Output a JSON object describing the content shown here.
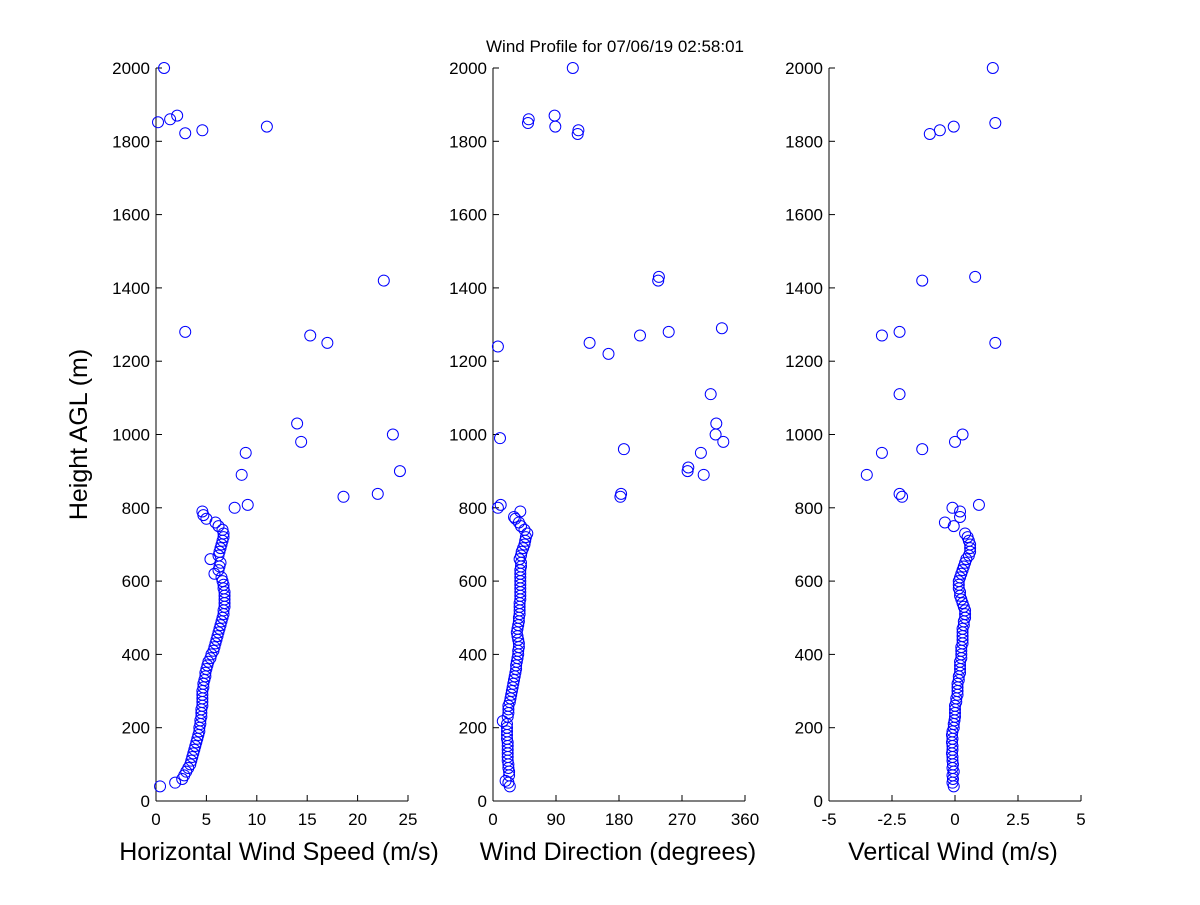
{
  "title": "Wind Profile for  07/06/19 02:58:01",
  "colors": {
    "marker": "#0000ff",
    "axis": "#000000",
    "background": "#ffffff"
  },
  "chart_data": [
    {
      "type": "scatter",
      "xlabel": "Horizontal Wind Speed (m/s)",
      "ylabel": "Height AGL (m)",
      "xlim": [
        0,
        25
      ],
      "ylim": [
        0,
        2000
      ],
      "xticks": [
        0,
        5,
        10,
        15,
        20,
        25
      ],
      "xtick_labels": [
        "0",
        "5",
        "10",
        "15",
        "20",
        "25"
      ],
      "yticks": [
        0,
        200,
        400,
        600,
        800,
        1000,
        1200,
        1400,
        1600,
        1800,
        2000
      ],
      "ytick_labels": [
        "0",
        "200",
        "400",
        "600",
        "800",
        "1000",
        "1200",
        "1400",
        "1600",
        "1800",
        "2000"
      ],
      "grid": false,
      "marker": "open-circle",
      "points": [
        [
          0.4,
          40
        ],
        [
          1.9,
          50
        ],
        [
          2.6,
          60
        ],
        [
          2.8,
          70
        ],
        [
          3.0,
          80
        ],
        [
          3.2,
          90
        ],
        [
          3.4,
          100
        ],
        [
          3.5,
          110
        ],
        [
          3.6,
          120
        ],
        [
          3.7,
          130
        ],
        [
          3.8,
          140
        ],
        [
          3.9,
          150
        ],
        [
          4.0,
          160
        ],
        [
          4.1,
          170
        ],
        [
          4.2,
          180
        ],
        [
          4.3,
          190
        ],
        [
          4.3,
          200
        ],
        [
          4.4,
          210
        ],
        [
          4.4,
          220
        ],
        [
          4.5,
          230
        ],
        [
          4.5,
          240
        ],
        [
          4.5,
          250
        ],
        [
          4.6,
          260
        ],
        [
          4.6,
          270
        ],
        [
          4.6,
          280
        ],
        [
          4.6,
          290
        ],
        [
          4.6,
          300
        ],
        [
          4.7,
          310
        ],
        [
          4.7,
          320
        ],
        [
          4.8,
          330
        ],
        [
          4.9,
          340
        ],
        [
          4.9,
          350
        ],
        [
          5.0,
          360
        ],
        [
          5.1,
          370
        ],
        [
          5.2,
          380
        ],
        [
          5.4,
          390
        ],
        [
          5.5,
          400
        ],
        [
          5.7,
          410
        ],
        [
          5.8,
          420
        ],
        [
          5.9,
          430
        ],
        [
          6.0,
          440
        ],
        [
          6.1,
          450
        ],
        [
          6.2,
          460
        ],
        [
          6.3,
          470
        ],
        [
          6.4,
          480
        ],
        [
          6.5,
          490
        ],
        [
          6.6,
          500
        ],
        [
          6.7,
          510
        ],
        [
          6.7,
          520
        ],
        [
          6.8,
          530
        ],
        [
          6.8,
          540
        ],
        [
          6.8,
          550
        ],
        [
          6.8,
          560
        ],
        [
          6.8,
          570
        ],
        [
          6.7,
          580
        ],
        [
          6.7,
          590
        ],
        [
          6.6,
          600
        ],
        [
          6.5,
          610
        ],
        [
          5.8,
          620
        ],
        [
          6.2,
          630
        ],
        [
          6.3,
          640
        ],
        [
          6.4,
          650
        ],
        [
          5.4,
          660
        ],
        [
          6.2,
          670
        ],
        [
          6.3,
          680
        ],
        [
          6.4,
          690
        ],
        [
          6.5,
          700
        ],
        [
          6.6,
          710
        ],
        [
          6.7,
          720
        ],
        [
          6.7,
          730
        ],
        [
          6.6,
          740
        ],
        [
          6.2,
          750
        ],
        [
          5.9,
          760
        ],
        [
          5.0,
          770
        ],
        [
          4.7,
          780
        ],
        [
          4.6,
          790
        ],
        [
          9.1,
          808
        ],
        [
          7.8,
          800
        ],
        [
          18.6,
          830
        ],
        [
          22.0,
          838
        ],
        [
          8.5,
          890
        ],
        [
          24.2,
          900
        ],
        [
          8.9,
          950
        ],
        [
          14.4,
          980
        ],
        [
          23.5,
          1000
        ],
        [
          14.0,
          1030
        ],
        [
          17.0,
          1250
        ],
        [
          15.3,
          1270
        ],
        [
          2.9,
          1280
        ],
        [
          22.6,
          1420
        ],
        [
          0.2,
          1852
        ],
        [
          2.9,
          1822
        ],
        [
          4.6,
          1830
        ],
        [
          1.4,
          1860
        ],
        [
          2.1,
          1870
        ],
        [
          11.0,
          1840
        ],
        [
          0.8,
          2000
        ]
      ]
    },
    {
      "type": "scatter",
      "xlabel": "Wind Direction (degrees)",
      "ylabel": "",
      "xlim": [
        0,
        360
      ],
      "ylim": [
        0,
        2000
      ],
      "xticks": [
        0,
        90,
        180,
        270,
        360
      ],
      "xtick_labels": [
        "0",
        "90",
        "180",
        "270",
        "360"
      ],
      "yticks": [
        0,
        200,
        400,
        600,
        800,
        1000,
        1200,
        1400,
        1600,
        1800,
        2000
      ],
      "ytick_labels": [
        "0",
        "200",
        "400",
        "600",
        "800",
        "1000",
        "1200",
        "1400",
        "1600",
        "1800",
        "2000"
      ],
      "grid": false,
      "marker": "open-circle",
      "points": [
        [
          24,
          40
        ],
        [
          22,
          50
        ],
        [
          18,
          55
        ],
        [
          23,
          70
        ],
        [
          23,
          80
        ],
        [
          22,
          90
        ],
        [
          22,
          100
        ],
        [
          21,
          110
        ],
        [
          21,
          120
        ],
        [
          21,
          130
        ],
        [
          21,
          140
        ],
        [
          21,
          150
        ],
        [
          21,
          160
        ],
        [
          20,
          170
        ],
        [
          20,
          180
        ],
        [
          20,
          190
        ],
        [
          20,
          200
        ],
        [
          20,
          210
        ],
        [
          14,
          218
        ],
        [
          21,
          230
        ],
        [
          22,
          240
        ],
        [
          22,
          250
        ],
        [
          22,
          260
        ],
        [
          24,
          270
        ],
        [
          25,
          280
        ],
        [
          26,
          290
        ],
        [
          27,
          300
        ],
        [
          28,
          310
        ],
        [
          29,
          320
        ],
        [
          30,
          330
        ],
        [
          31,
          340
        ],
        [
          32,
          350
        ],
        [
          33,
          360
        ],
        [
          33,
          370
        ],
        [
          34,
          380
        ],
        [
          35,
          390
        ],
        [
          36,
          400
        ],
        [
          36,
          410
        ],
        [
          37,
          420
        ],
        [
          37,
          430
        ],
        [
          36,
          440
        ],
        [
          35,
          450
        ],
        [
          34,
          460
        ],
        [
          35,
          470
        ],
        [
          36,
          480
        ],
        [
          37,
          490
        ],
        [
          37,
          500
        ],
        [
          38,
          510
        ],
        [
          38,
          520
        ],
        [
          38,
          530
        ],
        [
          38,
          540
        ],
        [
          39,
          550
        ],
        [
          39,
          560
        ],
        [
          39,
          570
        ],
        [
          39,
          580
        ],
        [
          39,
          590
        ],
        [
          39,
          600
        ],
        [
          39,
          610
        ],
        [
          39,
          620
        ],
        [
          39,
          630
        ],
        [
          40,
          640
        ],
        [
          40,
          650
        ],
        [
          38,
          660
        ],
        [
          40,
          670
        ],
        [
          41,
          680
        ],
        [
          43,
          690
        ],
        [
          45,
          700
        ],
        [
          46,
          710
        ],
        [
          47,
          720
        ],
        [
          49,
          730
        ],
        [
          45,
          740
        ],
        [
          40,
          750
        ],
        [
          37,
          760
        ],
        [
          32,
          770
        ],
        [
          30,
          775
        ],
        [
          39,
          790
        ],
        [
          11,
          808
        ],
        [
          7,
          800
        ],
        [
          182,
          830
        ],
        [
          183,
          838
        ],
        [
          278,
          900
        ],
        [
          279,
          910
        ],
        [
          301,
          890
        ],
        [
          297,
          950
        ],
        [
          187,
          960
        ],
        [
          10,
          990
        ],
        [
          329,
          980
        ],
        [
          318,
          1000
        ],
        [
          319,
          1030
        ],
        [
          311,
          1110
        ],
        [
          138,
          1250
        ],
        [
          165,
          1220
        ],
        [
          210,
          1270
        ],
        [
          7,
          1240
        ],
        [
          251,
          1280
        ],
        [
          327,
          1290
        ],
        [
          236,
          1420
        ],
        [
          237,
          1430
        ],
        [
          50,
          1850
        ],
        [
          51,
          1860
        ],
        [
          88,
          1870
        ],
        [
          89,
          1840
        ],
        [
          121,
          1820
        ],
        [
          122,
          1830
        ],
        [
          114,
          2000
        ]
      ]
    },
    {
      "type": "scatter",
      "xlabel": "Vertical Wind (m/s)",
      "ylabel": "",
      "xlim": [
        -5,
        5
      ],
      "ylim": [
        0,
        2000
      ],
      "xticks": [
        -5,
        -2.5,
        0,
        2.5,
        5
      ],
      "xtick_labels": [
        "-5",
        "-2.5",
        "0",
        "2.5",
        "5"
      ],
      "yticks": [
        0,
        200,
        400,
        600,
        800,
        1000,
        1200,
        1400,
        1600,
        1800,
        2000
      ],
      "ytick_labels": [
        "0",
        "200",
        "400",
        "600",
        "800",
        "1000",
        "1200",
        "1400",
        "1600",
        "1800",
        "2000"
      ],
      "grid": false,
      "marker": "open-circle",
      "points": [
        [
          -0.05,
          40
        ],
        [
          -0.1,
          50
        ],
        [
          -0.08,
          60
        ],
        [
          -0.1,
          70
        ],
        [
          -0.05,
          80
        ],
        [
          -0.1,
          90
        ],
        [
          -0.08,
          100
        ],
        [
          -0.1,
          110
        ],
        [
          -0.1,
          120
        ],
        [
          -0.12,
          130
        ],
        [
          -0.1,
          140
        ],
        [
          -0.1,
          150
        ],
        [
          -0.12,
          160
        ],
        [
          -0.1,
          170
        ],
        [
          -0.12,
          180
        ],
        [
          -0.1,
          190
        ],
        [
          -0.05,
          200
        ],
        [
          -0.05,
          210
        ],
        [
          -0.02,
          220
        ],
        [
          0.0,
          230
        ],
        [
          0.0,
          240
        ],
        [
          0.0,
          250
        ],
        [
          0.0,
          260
        ],
        [
          0.05,
          270
        ],
        [
          0.05,
          280
        ],
        [
          0.1,
          290
        ],
        [
          0.1,
          300
        ],
        [
          0.1,
          310
        ],
        [
          0.1,
          320
        ],
        [
          0.15,
          330
        ],
        [
          0.15,
          340
        ],
        [
          0.2,
          350
        ],
        [
          0.2,
          360
        ],
        [
          0.2,
          370
        ],
        [
          0.2,
          380
        ],
        [
          0.25,
          390
        ],
        [
          0.25,
          400
        ],
        [
          0.25,
          410
        ],
        [
          0.25,
          420
        ],
        [
          0.3,
          430
        ],
        [
          0.3,
          440
        ],
        [
          0.3,
          450
        ],
        [
          0.3,
          460
        ],
        [
          0.3,
          470
        ],
        [
          0.35,
          480
        ],
        [
          0.35,
          490
        ],
        [
          0.4,
          500
        ],
        [
          0.4,
          510
        ],
        [
          0.4,
          520
        ],
        [
          0.35,
          530
        ],
        [
          0.3,
          540
        ],
        [
          0.25,
          550
        ],
        [
          0.2,
          560
        ],
        [
          0.2,
          570
        ],
        [
          0.15,
          580
        ],
        [
          0.15,
          590
        ],
        [
          0.15,
          600
        ],
        [
          0.2,
          610
        ],
        [
          0.25,
          620
        ],
        [
          0.3,
          630
        ],
        [
          0.35,
          640
        ],
        [
          0.4,
          650
        ],
        [
          0.45,
          660
        ],
        [
          0.55,
          670
        ],
        [
          0.6,
          680
        ],
        [
          0.6,
          690
        ],
        [
          0.6,
          700
        ],
        [
          0.55,
          710
        ],
        [
          0.5,
          720
        ],
        [
          0.4,
          730
        ],
        [
          -0.05,
          750
        ],
        [
          -0.4,
          760
        ],
        [
          0.2,
          775
        ],
        [
          0.2,
          790
        ],
        [
          -0.1,
          800
        ],
        [
          0.95,
          808
        ],
        [
          -3.5,
          890
        ],
        [
          -2.9,
          950
        ],
        [
          -2.1,
          830
        ],
        [
          -2.2,
          838
        ],
        [
          -1.3,
          960
        ],
        [
          0.3,
          1000
        ],
        [
          0.0,
          980
        ],
        [
          -2.2,
          1110
        ],
        [
          -2.9,
          1270
        ],
        [
          -2.2,
          1280
        ],
        [
          1.6,
          1250
        ],
        [
          -1.3,
          1420
        ],
        [
          0.8,
          1430
        ],
        [
          -1.0,
          1820
        ],
        [
          -0.6,
          1830
        ],
        [
          -0.05,
          1840
        ],
        [
          1.6,
          1850
        ],
        [
          1.5,
          2000
        ]
      ]
    }
  ]
}
